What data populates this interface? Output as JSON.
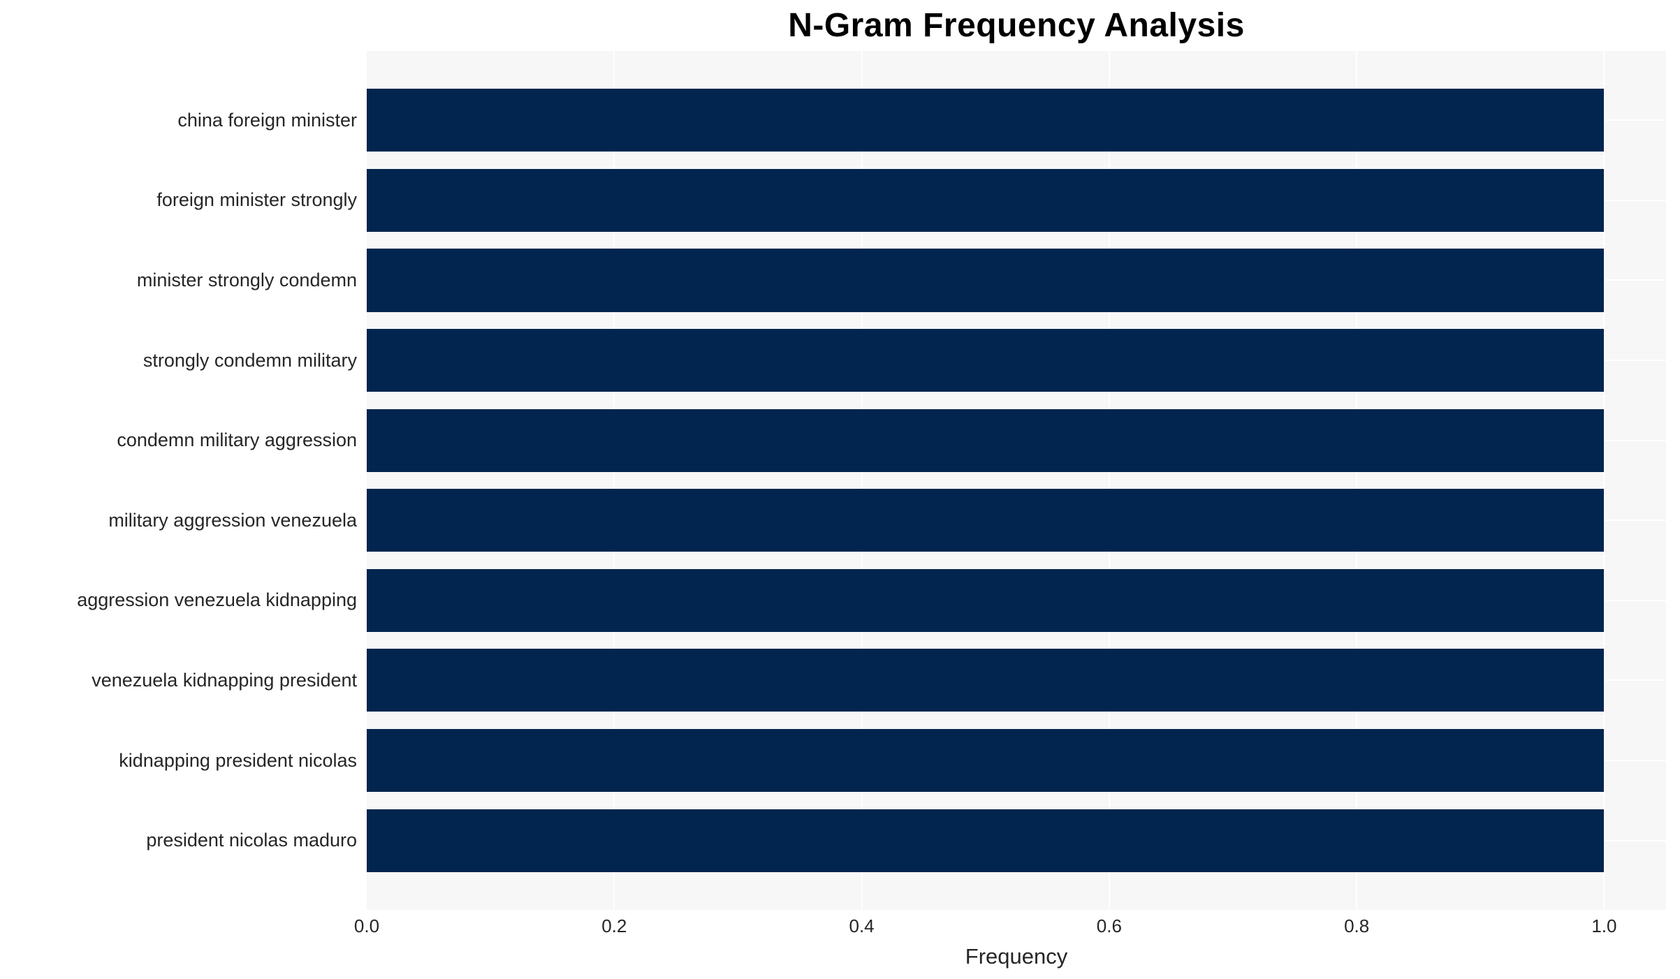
{
  "chart_data": {
    "type": "bar",
    "orientation": "horizontal",
    "title": "N-Gram Frequency Analysis",
    "categories": [
      "china foreign minister",
      "foreign minister strongly",
      "minister strongly condemn",
      "strongly condemn military",
      "condemn military aggression",
      "military aggression venezuela",
      "aggression venezuela kidnapping",
      "venezuela kidnapping president",
      "kidnapping president nicolas",
      "president nicolas maduro"
    ],
    "values": [
      1.0,
      1.0,
      1.0,
      1.0,
      1.0,
      1.0,
      1.0,
      1.0,
      1.0,
      1.0
    ],
    "xlabel": "Frequency",
    "ylabel": "",
    "x_ticks": [
      "0.0",
      "0.2",
      "0.4",
      "0.6",
      "0.8",
      "1.0"
    ],
    "xlim": [
      0,
      1.05
    ],
    "grid": true,
    "legend": "none",
    "colors": {
      "bar": "#01254e",
      "plot_background": "#f7f7f7",
      "gridline": "#ffffff",
      "text": "#262626",
      "title": "#000000"
    }
  }
}
